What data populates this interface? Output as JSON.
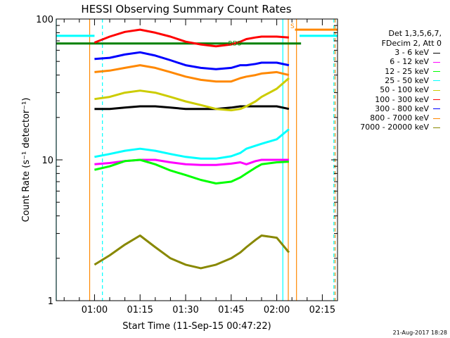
{
  "chart_data": {
    "type": "line",
    "title": "HESSI Observing Summary Count Rates",
    "xlabel": "Start Time (11-Sep-15 00:47:22)",
    "ylabel": "Count Rate (s⁻¹ detector⁻¹)",
    "y_scale": "log",
    "ylim": [
      1,
      100
    ],
    "y_ticks": [
      "1",
      "10",
      "100"
    ],
    "x_unit": "minutes",
    "xlim": [
      47.4,
      140
    ],
    "x_ticks": [
      {
        "value": 60,
        "label": "01:00"
      },
      {
        "value": 75,
        "label": "01:15"
      },
      {
        "value": 90,
        "label": "01:30"
      },
      {
        "value": 105,
        "label": "01:45"
      },
      {
        "value": 120,
        "label": "02:00"
      },
      {
        "value": 135,
        "label": "02:15"
      }
    ],
    "legend": {
      "header": [
        "Det 1,3,5,6,7,",
        "FDecim 2, Att 0"
      ],
      "placement": "right"
    },
    "series": [
      {
        "name": "3 - 6 keV",
        "color": "#000000",
        "x": [
          60,
          65,
          70,
          75,
          80,
          85,
          90,
          95,
          100,
          105,
          108,
          110,
          113,
          115,
          120,
          124
        ],
        "y": [
          23,
          23,
          23.5,
          24,
          24,
          23.5,
          23,
          23,
          23,
          23.5,
          24,
          24,
          24,
          24,
          24,
          23
        ]
      },
      {
        "name": "6 - 12 keV",
        "color": "#ff00ff",
        "x": [
          60,
          65,
          70,
          75,
          80,
          85,
          90,
          95,
          100,
          105,
          108,
          110,
          113,
          115,
          120,
          124
        ],
        "y": [
          9.3,
          9.5,
          9.8,
          10,
          10,
          9.6,
          9.3,
          9.2,
          9.2,
          9.4,
          9.6,
          9.3,
          9.8,
          10,
          10,
          10
        ]
      },
      {
        "name": "12 - 25 keV",
        "color": "#00ff00",
        "x": [
          60,
          65,
          70,
          75,
          80,
          85,
          90,
          95,
          100,
          105,
          108,
          110,
          113,
          115,
          120,
          124
        ],
        "y": [
          8.5,
          9,
          9.8,
          10,
          9.3,
          8.4,
          7.8,
          7.2,
          6.8,
          7,
          7.5,
          8,
          8.8,
          9.3,
          9.6,
          9.7
        ]
      },
      {
        "name": "25 - 50 keV",
        "color": "#00ffff",
        "x": [
          60,
          65,
          70,
          75,
          80,
          85,
          90,
          95,
          100,
          105,
          108,
          110,
          113,
          115,
          120,
          124
        ],
        "y": [
          10.5,
          11,
          11.6,
          12,
          11.6,
          11,
          10.5,
          10.2,
          10.2,
          10.6,
          11.2,
          12,
          12.6,
          13,
          14,
          16.5
        ]
      },
      {
        "name": "50 - 100 keV",
        "color": "#cccc00",
        "x": [
          60,
          65,
          70,
          75,
          80,
          85,
          90,
          95,
          100,
          105,
          108,
          110,
          113,
          115,
          120,
          124
        ],
        "y": [
          27,
          28,
          30,
          31,
          30,
          28,
          26,
          24.5,
          23,
          22.5,
          23,
          24,
          26,
          28,
          32,
          38
        ]
      },
      {
        "name": "100 - 300 keV",
        "color": "#ff0000",
        "x": [
          60,
          65,
          70,
          75,
          80,
          85,
          90,
          95,
          100,
          105,
          108,
          110,
          113,
          115,
          120,
          124
        ],
        "y": [
          68,
          75,
          81,
          84,
          80,
          75,
          69,
          66,
          64,
          66,
          69,
          72,
          74,
          75,
          75,
          74
        ]
      },
      {
        "name": "300 - 800 keV",
        "color": "#0000ff",
        "x": [
          60,
          65,
          70,
          75,
          80,
          85,
          90,
          95,
          100,
          105,
          108,
          110,
          113,
          115,
          120,
          124
        ],
        "y": [
          52,
          53,
          56,
          58,
          55,
          51,
          47,
          45,
          44,
          45,
          47,
          47,
          48,
          49,
          49,
          47
        ]
      },
      {
        "name": "800 - 7000 keV",
        "color": "#ff8800",
        "x": [
          60,
          65,
          70,
          75,
          80,
          85,
          90,
          95,
          100,
          105,
          108,
          110,
          113,
          115,
          120,
          124
        ],
        "y": [
          42,
          43,
          45,
          47,
          45,
          42,
          39,
          37,
          36,
          36,
          38,
          39,
          40,
          41,
          42,
          40
        ]
      },
      {
        "name": "7000 - 20000 keV",
        "color": "#888800",
        "x": [
          60,
          65,
          70,
          75,
          80,
          85,
          90,
          95,
          100,
          105,
          108,
          110,
          113,
          115,
          120,
          124
        ],
        "y": [
          1.8,
          2.1,
          2.5,
          2.9,
          2.4,
          2,
          1.8,
          1.7,
          1.8,
          2,
          2.2,
          2.4,
          2.7,
          2.9,
          2.8,
          2.2
        ]
      }
    ],
    "annotations": [
      {
        "text": "RDS",
        "x": 104,
        "y": 65,
        "color": "#008800"
      },
      {
        "text": "S",
        "x": 124.5,
        "y": 86,
        "color": "#ff8800"
      }
    ],
    "status_bars": [
      {
        "color": "#00ffff",
        "x0": 47.4,
        "x1": 60,
        "y": 76
      },
      {
        "color": "#00ffff",
        "x0": 127.5,
        "x1": 140,
        "y": 76
      },
      {
        "color": "#ff8800",
        "x0": 126,
        "x1": 140,
        "y": 84
      },
      {
        "color": "#008000",
        "x0": 47.4,
        "x1": 128,
        "y": 67
      }
    ],
    "vertical_markers": [
      {
        "color": "#00ffff",
        "x": 47.4,
        "style": "solid"
      },
      {
        "color": "#ff8800",
        "x": 58.4,
        "style": "solid"
      },
      {
        "color": "#00ffff",
        "x": 62.6,
        "style": "dashed"
      },
      {
        "color": "#00ffff",
        "x": 122,
        "style": "solid"
      },
      {
        "color": "#ff8800",
        "x": 123.8,
        "style": "solid"
      },
      {
        "color": "#ff8800",
        "x": 126.5,
        "style": "solid"
      },
      {
        "color": "#00ffff",
        "x": 138.8,
        "style": "dashed"
      },
      {
        "color": "#ff8800",
        "x": 139.2,
        "style": "dashed"
      }
    ]
  },
  "footer": {
    "timestamp": "21-Aug-2017 18:28"
  }
}
